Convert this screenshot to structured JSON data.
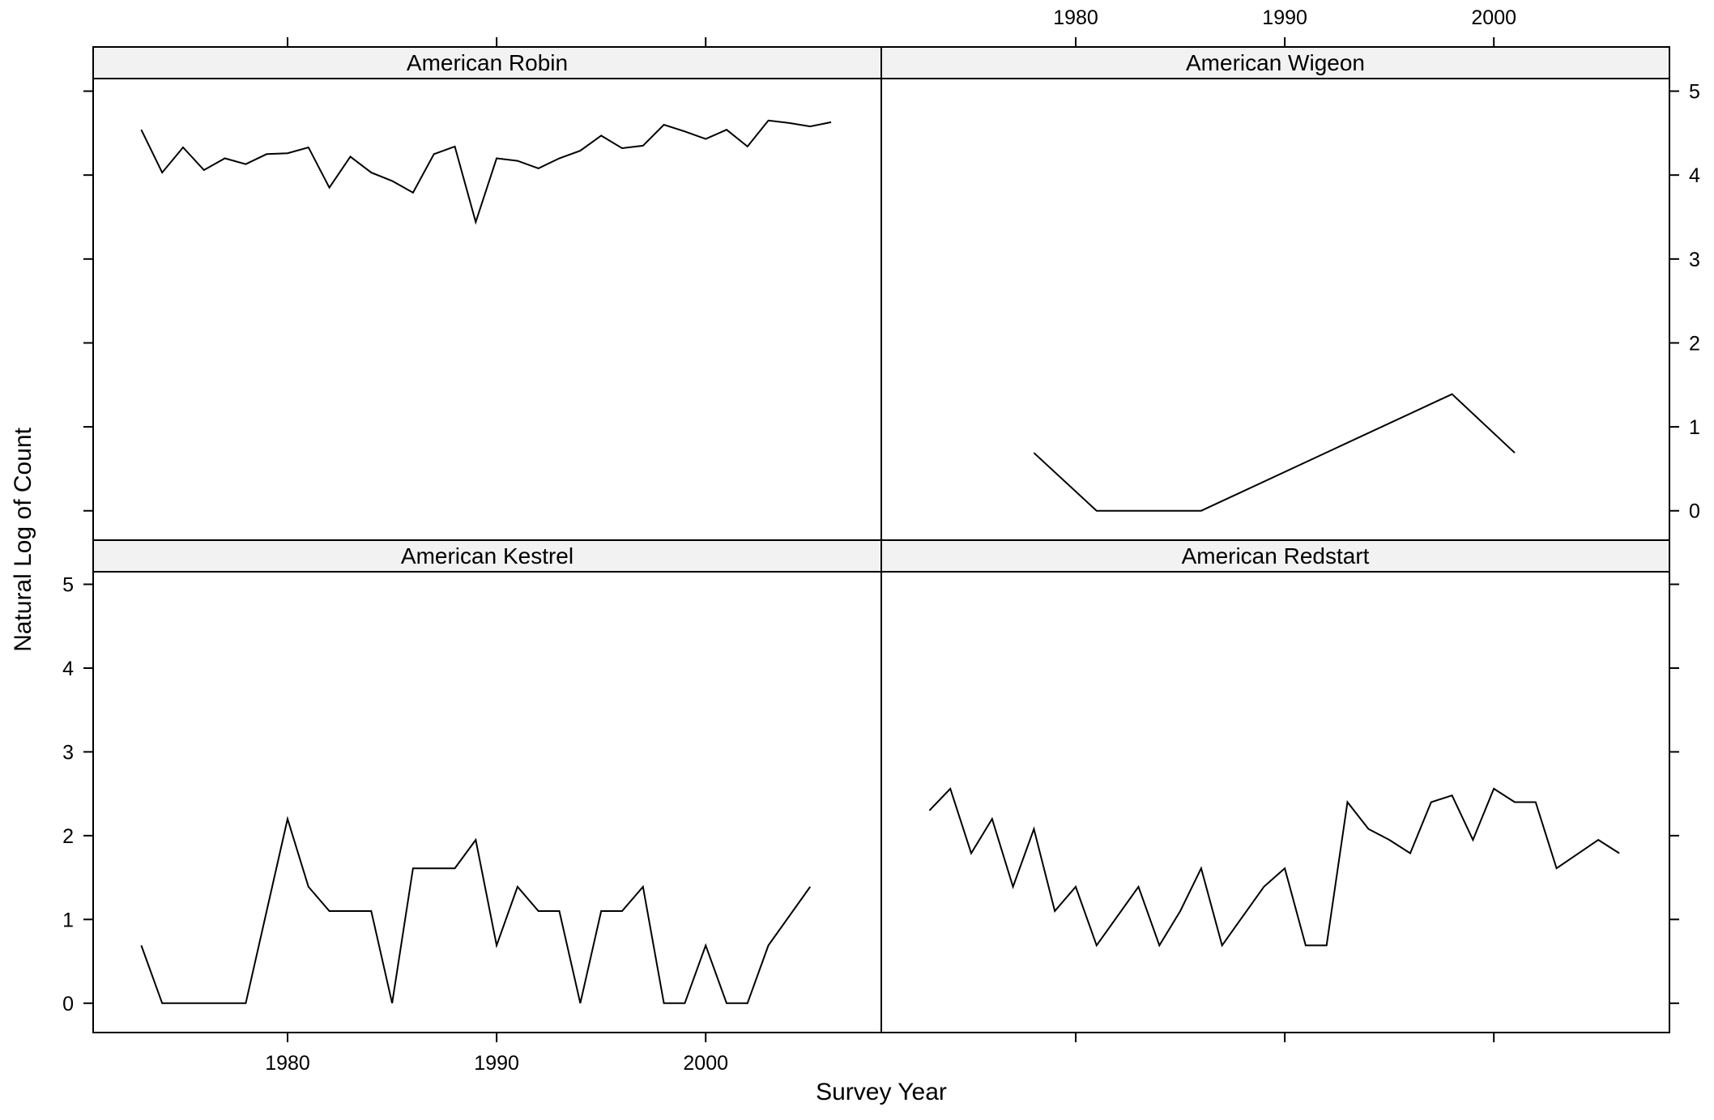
{
  "chart_data": {
    "type": "line",
    "layout": "2x2 trellis",
    "xlabel": "Survey Year",
    "ylabel": "Natural Log of Count",
    "xlim": [
      1970.7,
      2008.4
    ],
    "ylim": [
      -0.35,
      5.15
    ],
    "xticks": [
      1980,
      1990,
      2000
    ],
    "yticks": [
      0,
      1,
      2,
      3,
      4,
      5
    ],
    "grid": false,
    "legend": "none",
    "colors": {
      "line": "#000000",
      "strip": "#f2f2f2",
      "frame": "#000000"
    },
    "panels": [
      {
        "title": "American Robin",
        "position": "top-left",
        "x": [
          1973,
          1974,
          1975,
          1976,
          1977,
          1978,
          1979,
          1980,
          1981,
          1982,
          1983,
          1984,
          1985,
          1986,
          1987,
          1988,
          1989,
          1990,
          1991,
          1992,
          1993,
          1994,
          1995,
          1996,
          1997,
          1998,
          1999,
          2000,
          2001,
          2002,
          2003,
          2004,
          2005,
          2006
        ],
        "y": [
          4.54,
          4.03,
          4.33,
          4.06,
          4.2,
          4.13,
          4.25,
          4.26,
          4.33,
          3.85,
          4.22,
          4.03,
          3.93,
          3.79,
          4.25,
          4.34,
          3.44,
          4.2,
          4.17,
          4.08,
          4.2,
          4.29,
          4.47,
          4.32,
          4.35,
          4.6,
          4.52,
          4.43,
          4.54,
          4.34,
          4.65,
          4.62,
          4.58,
          4.63
        ]
      },
      {
        "title": "American Wigeon",
        "position": "top-right",
        "x": [
          1978,
          1981,
          1986,
          1998,
          2001
        ],
        "y": [
          0.69,
          0,
          0,
          1.39,
          0.69
        ]
      },
      {
        "title": "American Kestrel",
        "position": "bottom-left",
        "x": [
          1973,
          1974,
          1975,
          1976,
          1977,
          1978,
          1979,
          1980,
          1981,
          1982,
          1983,
          1984,
          1985,
          1986,
          1987,
          1988,
          1989,
          1990,
          1991,
          1992,
          1993,
          1994,
          1995,
          1996,
          1997,
          1998,
          1999,
          2000,
          2001,
          2002,
          2003,
          2005
        ],
        "y": [
          0.69,
          0,
          0,
          0,
          0,
          0,
          1.1,
          2.2,
          1.39,
          1.1,
          1.1,
          1.1,
          0,
          1.61,
          1.61,
          1.61,
          1.95,
          0.69,
          1.39,
          1.1,
          1.1,
          0,
          1.1,
          1.1,
          1.39,
          0,
          0,
          0.69,
          0,
          0,
          0.69,
          1.39
        ]
      },
      {
        "title": "American Redstart",
        "position": "bottom-right",
        "x": [
          1973,
          1974,
          1975,
          1976,
          1977,
          1978,
          1979,
          1980,
          1981,
          1983,
          1984,
          1985,
          1986,
          1987,
          1989,
          1990,
          1991,
          1992,
          1993,
          1994,
          1995,
          1996,
          1997,
          1998,
          1999,
          2000,
          2001,
          2002,
          2003,
          2005,
          2006
        ],
        "y": [
          2.3,
          2.56,
          1.79,
          2.2,
          1.39,
          2.08,
          1.1,
          1.39,
          0.69,
          1.39,
          0.69,
          1.1,
          1.61,
          0.69,
          1.39,
          1.61,
          0.69,
          0.69,
          2.4,
          2.08,
          1.95,
          1.79,
          2.4,
          2.48,
          1.95,
          2.56,
          2.4,
          2.4,
          1.61,
          1.95,
          1.79
        ]
      }
    ]
  }
}
